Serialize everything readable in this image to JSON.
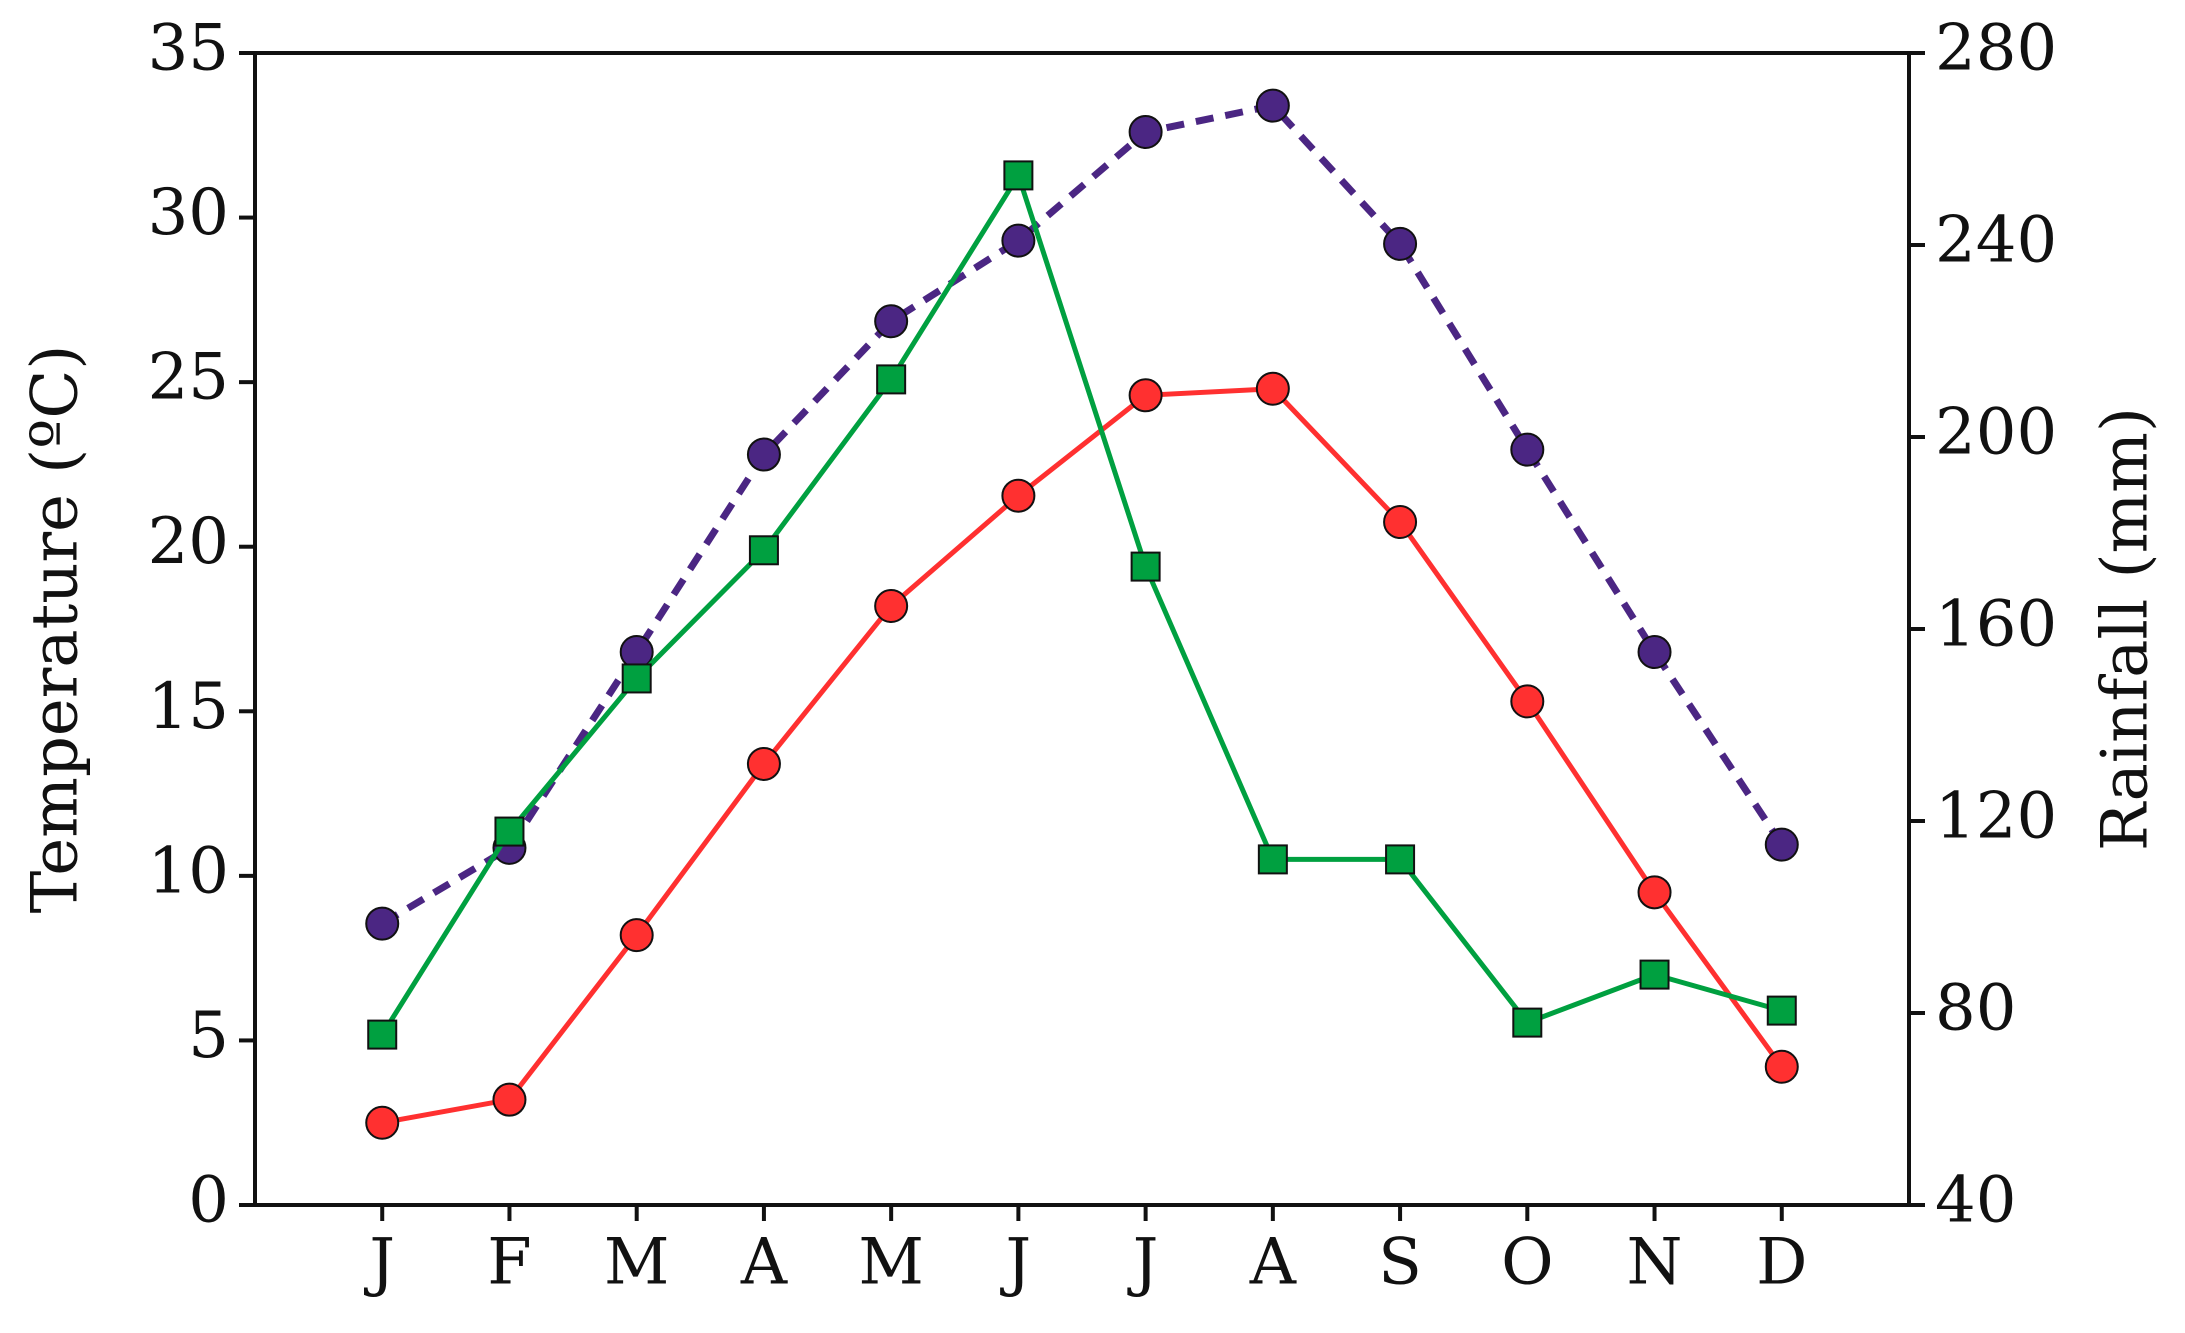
{
  "chart_data": {
    "type": "line",
    "categories": [
      "J",
      "F",
      "M",
      "A",
      "M",
      "J",
      "J",
      "A",
      "S",
      "O",
      "N",
      "D"
    ],
    "ylabel": "Temperature (ºC)",
    "y2label": "Rainfall (mm)",
    "ylim": [
      0,
      35
    ],
    "yticks": [
      0,
      5,
      10,
      15,
      20,
      25,
      30,
      35
    ],
    "y2lim": [
      40,
      280
    ],
    "y2ticks": [
      40,
      80,
      120,
      160,
      200,
      240,
      280
    ],
    "grid": false,
    "series": [
      {
        "color": "#4b2683",
        "marker": "circle",
        "linestyle": "dashed",
        "axis": "y",
        "values": [
          8.55,
          10.85,
          16.8,
          22.8,
          26.85,
          29.3,
          32.6,
          33.4,
          29.2,
          22.95,
          16.8,
          10.95
        ]
      },
      {
        "color": "#ff3030",
        "marker": "circle",
        "linestyle": "solid",
        "axis": "y",
        "values": [
          2.5,
          3.2,
          8.2,
          13.4,
          18.2,
          21.55,
          24.6,
          24.8,
          20.75,
          15.3,
          9.5,
          4.2
        ]
      },
      {
        "color": "#00a040",
        "marker": "square",
        "linestyle": "solid",
        "axis": "y2",
        "values": [
          75.5,
          117.8,
          149.7,
          176.4,
          212,
          254.5,
          173,
          112,
          112,
          78,
          88,
          80.5
        ]
      }
    ]
  }
}
